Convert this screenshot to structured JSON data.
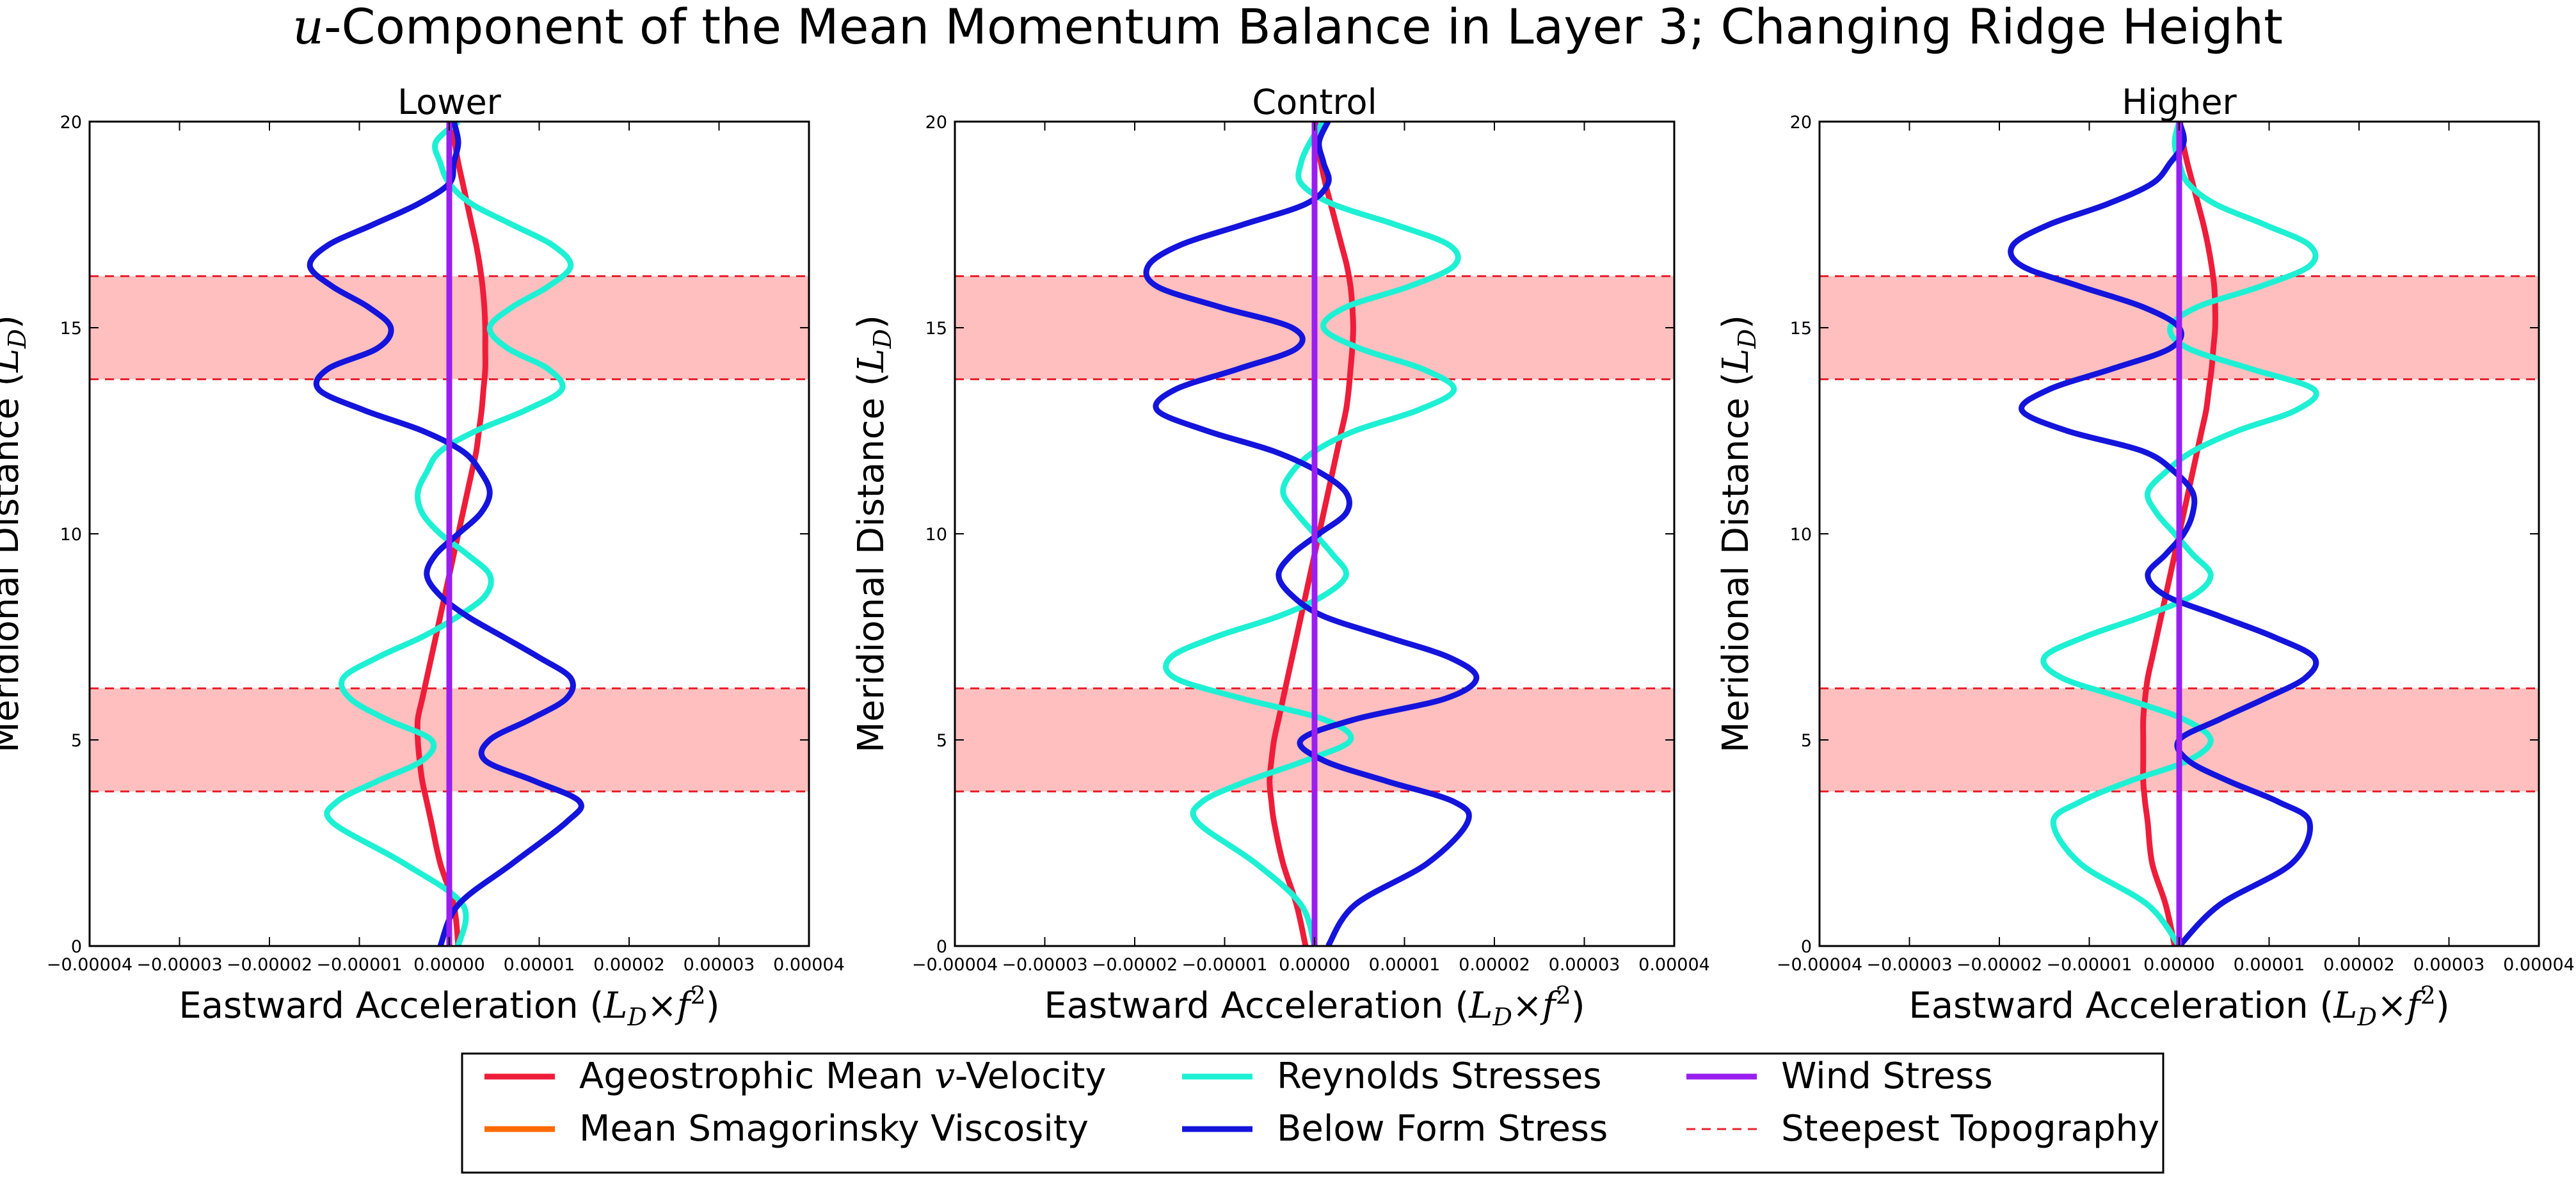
{
  "figure": {
    "title_italic": "u",
    "title_rest": "-Component of the Mean Momentum Balance in Layer 3; Changing Ridge Height"
  },
  "axes": {
    "xlabel": "Eastward Acceleration (",
    "xlabel_math": "L",
    "xlabel_sub": "D",
    "xlabel_mid": "×f",
    "xlabel_sup": "2",
    "xlabel_close": ")",
    "ylabel": "Meridional Distance (",
    "ylabel_math": "L",
    "ylabel_sub": "D",
    "ylabel_close": ")",
    "xlim": [
      -4e-05,
      4e-05
    ],
    "ylim": [
      0,
      20
    ],
    "xticks": [
      "−0.00004",
      "−0.00003",
      "−0.00002",
      "−0.00001",
      "0.00000",
      "0.00001",
      "0.00002",
      "0.00003",
      "0.00004"
    ],
    "xtick_values": [
      -4e-05,
      -3e-05,
      -2e-05,
      -1e-05,
      0,
      1e-05,
      2e-05,
      3e-05,
      4e-05
    ],
    "yticks": [
      "0",
      "5",
      "10",
      "15",
      "20"
    ],
    "ytick_values": [
      0,
      5,
      10,
      15,
      20
    ],
    "grid": false
  },
  "shading": {
    "bands": [
      [
        3.75,
        6.25
      ],
      [
        13.75,
        16.25
      ]
    ],
    "fill_color": "#ffbfbf",
    "line_color": "#e8222e"
  },
  "legend": {
    "placement": "bottom-center",
    "columns": 3,
    "entries": [
      {
        "label_pre": "Ageostrophic Mean ",
        "label_math": "v",
        "label_post": "-Velocity",
        "color": "#ee1d3a",
        "style": "solid"
      },
      {
        "label_pre": "Mean Smagorinsky Viscosity",
        "label_math": "",
        "label_post": "",
        "color": "#ff6a00",
        "style": "solid"
      },
      {
        "label_pre": "Reynolds Stresses",
        "label_math": "",
        "label_post": "",
        "color": "#1ef0d4",
        "style": "solid"
      },
      {
        "label_pre": "Below Form Stress",
        "label_math": "",
        "label_post": "",
        "color": "#1414dc",
        "style": "solid"
      },
      {
        "label_pre": "Wind Stress",
        "label_math": "",
        "label_post": "",
        "color": "#9a1ef0",
        "style": "solid"
      },
      {
        "label_pre": "Steepest Topography",
        "label_math": "",
        "label_post": "",
        "color": "#e8222e",
        "style": "dashed"
      }
    ]
  },
  "chart_data": [
    {
      "type": "line",
      "title": "Lower",
      "y": [
        0,
        1,
        2,
        3,
        3.5,
        4,
        4.5,
        5,
        5.5,
        6,
        6.5,
        7,
        7.5,
        8,
        8.5,
        9,
        9.5,
        10,
        10.5,
        11,
        11.5,
        12,
        12.5,
        13,
        13.5,
        14,
        14.5,
        15,
        15.5,
        16,
        16.5,
        17,
        17.5,
        18,
        18.5,
        19,
        19.5,
        20
      ],
      "series": [
        {
          "name": "Ageostrophic Mean v-Velocity",
          "color": "#ee1d3a",
          "values": [
            1e-06,
            5e-07,
            -1e-06,
            -2e-06,
            -2.5e-06,
            -3e-06,
            -3.3e-06,
            -3.5e-06,
            -3.5e-06,
            -3e-06,
            -2.5e-06,
            -2e-06,
            -1.5e-06,
            -1e-06,
            -5e-07,
            0,
            5e-07,
            1e-06,
            1.5e-06,
            2e-06,
            2.5e-06,
            3e-06,
            3.3e-06,
            3.6e-06,
            3.8e-06,
            4e-06,
            4e-06,
            4e-06,
            3.9e-06,
            3.7e-06,
            3.4e-06,
            3e-06,
            2.5e-06,
            2e-06,
            1.5e-06,
            1e-06,
            6e-07,
            2e-07
          ]
        },
        {
          "name": "Mean Smagorinsky Viscosity",
          "color": "#ff6a00",
          "values": [
            0,
            0,
            0,
            0,
            0,
            0,
            0,
            0,
            0,
            0,
            0,
            0,
            0,
            0,
            0,
            0,
            0,
            0,
            0,
            0,
            0,
            0,
            0,
            0,
            0,
            0,
            0,
            0,
            0,
            0,
            0,
            0,
            0,
            0,
            0,
            0,
            0,
            0
          ]
        },
        {
          "name": "Reynolds Stresses",
          "color": "#1ef0d4",
          "values": [
            1e-06,
            1.5e-06,
            -5e-06,
            -1.3e-05,
            -1.25e-05,
            -8e-06,
            -3e-06,
            -2e-06,
            -7e-06,
            -1.1e-05,
            -1.18e-05,
            -8e-06,
            -3e-06,
            1e-06,
            4e-06,
            4.5e-06,
            2e-06,
            -1e-06,
            -3e-06,
            -3.5e-06,
            -2.5e-06,
            -1e-06,
            3e-06,
            8.5e-06,
            1.25e-05,
            1.1e-05,
            6.5e-06,
            4.5e-06,
            7e-06,
            1.1e-05,
            1.35e-05,
            1.15e-05,
            7e-06,
            2.5e-06,
            0,
            -1e-06,
            -1.5e-06,
            1e-06
          ]
        },
        {
          "name": "Below Form Stress",
          "color": "#1414dc",
          "values": [
            -1e-06,
            1e-06,
            7e-06,
            1.3e-05,
            1.45e-05,
            9.5e-06,
            4e-06,
            4.5e-06,
            9e-06,
            1.3e-05,
            1.35e-05,
            1e-05,
            6e-06,
            2e-06,
            -1e-06,
            -2.5e-06,
            -1.5e-06,
            1e-06,
            3.5e-06,
            4.5e-06,
            3.5e-06,
            1.5e-06,
            -3e-06,
            -9.5e-06,
            -1.45e-05,
            -1.35e-05,
            -8e-06,
            -6.5e-06,
            -9e-06,
            -1.3e-05,
            -1.55e-05,
            -1.35e-05,
            -8.5e-06,
            -3.5e-06,
            0,
            5e-07,
            1e-06,
            5e-07
          ]
        },
        {
          "name": "Wind Stress",
          "color": "#9a1ef0",
          "values": [
            0,
            0,
            0,
            0,
            0,
            0,
            0,
            0,
            0,
            0,
            0,
            0,
            0,
            0,
            0,
            0,
            0,
            0,
            0,
            0,
            0,
            0,
            0,
            0,
            0,
            0,
            0,
            0,
            0,
            0,
            0,
            0,
            0,
            0,
            0,
            0,
            0,
            0
          ]
        }
      ]
    },
    {
      "type": "line",
      "title": "Control",
      "y": [
        0,
        1,
        2,
        3,
        3.5,
        4,
        4.5,
        5,
        5.5,
        6,
        6.5,
        7,
        7.5,
        8,
        8.5,
        9,
        9.5,
        10,
        10.5,
        11,
        11.5,
        12,
        12.5,
        13,
        13.5,
        14,
        14.5,
        15,
        15.5,
        16,
        16.5,
        17,
        17.5,
        18,
        18.5,
        19,
        19.5,
        20
      ],
      "series": [
        {
          "name": "Ageostrophic Mean v-Velocity",
          "color": "#ee1d3a",
          "values": [
            -1e-06,
            -2e-06,
            -3.5e-06,
            -4.5e-06,
            -4.8e-06,
            -5e-06,
            -4.8e-06,
            -4.5e-06,
            -4e-06,
            -3.5e-06,
            -3e-06,
            -2.5e-06,
            -2e-06,
            -1.5e-06,
            -1e-06,
            -5e-07,
            0,
            5e-07,
            1e-06,
            1.5e-06,
            2e-06,
            2.5e-06,
            3e-06,
            3.5e-06,
            3.8e-06,
            4e-06,
            4.2e-06,
            4.3e-06,
            4.2e-06,
            4e-06,
            3.6e-06,
            3e-06,
            2.4e-06,
            1.8e-06,
            1.2e-06,
            7e-07,
            3e-07,
            1e-07
          ]
        },
        {
          "name": "Mean Smagorinsky Viscosity",
          "color": "#ff6a00",
          "values": [
            0,
            0,
            0,
            0,
            0,
            0,
            0,
            0,
            0,
            0,
            0,
            0,
            0,
            0,
            0,
            0,
            0,
            0,
            0,
            0,
            0,
            0,
            0,
            0,
            0,
            0,
            0,
            0,
            0,
            0,
            0,
            0,
            0,
            0,
            0,
            0,
            0,
            0
          ]
        },
        {
          "name": "Reynolds Stresses",
          "color": "#1ef0d4",
          "values": [
            0,
            -1.5e-06,
            -6.5e-06,
            -1.3e-05,
            -1.25e-05,
            -7.5e-06,
            -1e-06,
            4e-06,
            1e-06,
            -8e-06,
            -1.55e-05,
            -1.6e-05,
            -1.1e-05,
            -4e-06,
            1e-06,
            3.5e-06,
            2e-06,
            0,
            -2e-06,
            -3.5e-06,
            -2.5e-06,
            0,
            4.5e-06,
            1.15e-05,
            1.55e-05,
            1.2e-05,
            5e-06,
            1e-06,
            3.5e-06,
            1.05e-05,
            1.55e-05,
            1.5e-05,
            9e-06,
            2e-06,
            -1.5e-06,
            -1.5e-06,
            -5e-07,
            1e-06
          ]
        },
        {
          "name": "Below Form Stress",
          "color": "#1414dc",
          "values": [
            1.5e-06,
            4.5e-06,
            1.25e-05,
            1.7e-05,
            1.55e-05,
            8e-06,
            1e-06,
            -1.5e-06,
            4.5e-06,
            1.45e-05,
            1.8e-05,
            1.5e-05,
            8e-06,
            1e-06,
            -2.5e-06,
            -4e-06,
            -2.5e-06,
            5e-07,
            3.5e-06,
            3.5e-06,
            5e-07,
            -4.5e-06,
            -1.2e-05,
            -1.75e-05,
            -1.55e-05,
            -8.5e-06,
            -2e-06,
            -2.5e-06,
            -1.05e-05,
            -1.75e-05,
            -1.85e-05,
            -1.5e-05,
            -8e-06,
            -1e-06,
            1.5e-06,
            1e-06,
            5e-07,
            1.5e-06
          ]
        },
        {
          "name": "Wind Stress",
          "color": "#9a1ef0",
          "values": [
            0,
            0,
            0,
            0,
            0,
            0,
            0,
            0,
            0,
            0,
            0,
            0,
            0,
            0,
            0,
            0,
            0,
            0,
            0,
            0,
            0,
            0,
            0,
            0,
            0,
            0,
            0,
            0,
            0,
            0,
            0,
            0,
            0,
            0,
            0,
            0,
            0,
            0
          ]
        }
      ]
    },
    {
      "type": "line",
      "title": "Higher",
      "y": [
        0,
        1,
        2,
        3,
        3.5,
        4,
        4.5,
        5,
        5.5,
        6,
        6.5,
        7,
        7.5,
        8,
        8.5,
        9,
        9.5,
        10,
        10.5,
        11,
        11.5,
        12,
        12.5,
        13,
        13.5,
        14,
        14.5,
        15,
        15.5,
        16,
        16.5,
        17,
        17.5,
        18,
        18.5,
        19,
        19.5,
        20
      ],
      "series": [
        {
          "name": "Ageostrophic Mean v-Velocity",
          "color": "#ee1d3a",
          "values": [
            -5e-07,
            -1.5e-06,
            -3e-06,
            -3.5e-06,
            -3.8e-06,
            -4e-06,
            -4e-06,
            -4e-06,
            -4e-06,
            -3.8e-06,
            -3.5e-06,
            -3e-06,
            -2.5e-06,
            -2e-06,
            -1.5e-06,
            -1e-06,
            -5e-07,
            0,
            5e-07,
            1e-06,
            1.5e-06,
            2e-06,
            2.5e-06,
            3e-06,
            3.3e-06,
            3.6e-06,
            3.8e-06,
            4e-06,
            4e-06,
            3.9e-06,
            3.6e-06,
            3.2e-06,
            2.7e-06,
            2.1e-06,
            1.5e-06,
            9e-07,
            4e-07,
            1e-07
          ]
        },
        {
          "name": "Mean Smagorinsky Viscosity",
          "color": "#ff6a00",
          "values": [
            0,
            0,
            0,
            0,
            0,
            0,
            0,
            0,
            0,
            0,
            0,
            0,
            0,
            0,
            0,
            0,
            0,
            0,
            0,
            0,
            0,
            0,
            0,
            0,
            0,
            0,
            0,
            0,
            0,
            0,
            0,
            0,
            0,
            0,
            0,
            0,
            0,
            0
          ]
        },
        {
          "name": "Reynolds Stresses",
          "color": "#1ef0d4",
          "values": [
            0,
            -3.5e-06,
            -1.1e-05,
            -1.4e-05,
            -1.1e-05,
            -5.5e-06,
            1e-06,
            3.5e-06,
            5e-07,
            -6e-06,
            -1.3e-05,
            -1.5e-05,
            -1.05e-05,
            -4e-06,
            1.5e-06,
            3.5e-06,
            1.5e-06,
            -5e-07,
            -2.5e-06,
            -3.5e-06,
            -1.5e-06,
            1.5e-06,
            6.5e-06,
            1.3e-05,
            1.5e-05,
            8e-06,
            1e-06,
            -1e-06,
            2e-06,
            9e-06,
            1.45e-05,
            1.45e-05,
            9.5e-06,
            4e-06,
            1e-06,
            0,
            -5e-07,
            0
          ]
        },
        {
          "name": "Below Form Stress",
          "color": "#1414dc",
          "values": [
            0,
            4.5e-06,
            1.25e-05,
            1.45e-05,
            1.1e-05,
            5.5e-06,
            1e-06,
            0,
            4.5e-06,
            9.5e-06,
            1.4e-05,
            1.5e-05,
            1.05e-05,
            4.5e-06,
            -1.5e-06,
            -3.5e-06,
            -1.5e-06,
            5e-07,
            1.5e-06,
            1.5e-06,
            -5e-07,
            -4e-06,
            -1.25e-05,
            -1.75e-05,
            -1.45e-05,
            -7.5e-06,
            -1e-06,
            0,
            -4e-06,
            -1.1e-05,
            -1.75e-05,
            -1.85e-05,
            -1.45e-05,
            -8e-06,
            -3e-06,
            -1e-06,
            5e-07,
            0
          ]
        },
        {
          "name": "Wind Stress",
          "color": "#9a1ef0",
          "values": [
            0,
            0,
            0,
            0,
            0,
            0,
            0,
            0,
            0,
            0,
            0,
            0,
            0,
            0,
            0,
            0,
            0,
            0,
            0,
            0,
            0,
            0,
            0,
            0,
            0,
            0,
            0,
            0,
            0,
            0,
            0,
            0,
            0,
            0,
            0,
            0,
            0,
            0
          ]
        }
      ]
    }
  ]
}
